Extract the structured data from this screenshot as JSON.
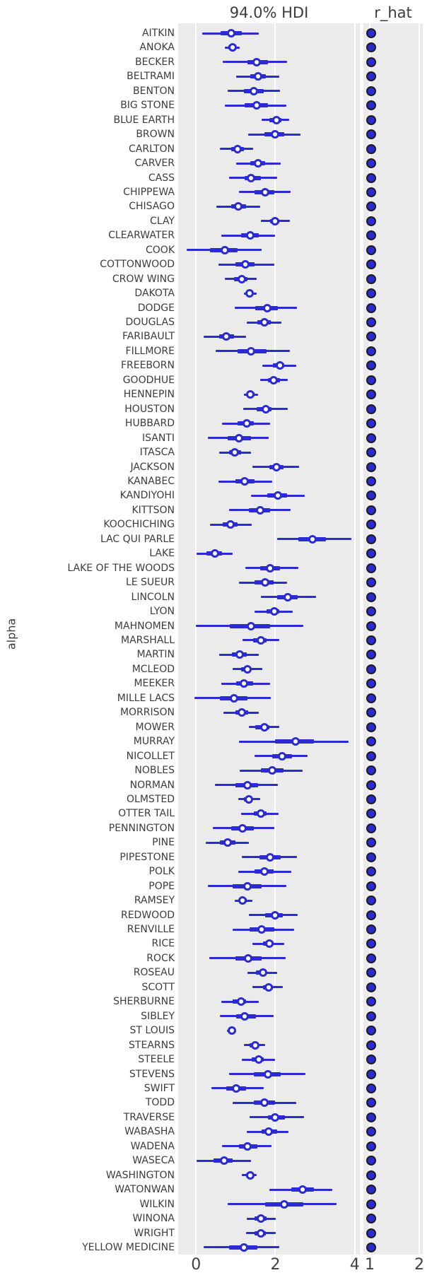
{
  "figure": {
    "colors": {
      "line": "#2b2bd5",
      "marker_fill": "#ffffff",
      "dot_fill": "#2b2bd5",
      "dot_edge": "#1c1c1c",
      "panel_bg": "#ebebeb",
      "grid": "#ffffff",
      "text": "#3c3c3c"
    }
  },
  "chart_data": {
    "type": "forest",
    "title": "94.0% HDI",
    "ylabel": "alpha",
    "hdi_prob": 0.94,
    "grid": true,
    "left_panel": {
      "title": "94.0% HDI",
      "xlim": [
        -0.45,
        4.13
      ],
      "ticks": [
        0,
        2,
        4
      ]
    },
    "right_panel": {
      "title": "r_hat",
      "xlim": [
        0.871,
        2.071
      ],
      "ticks": [
        1,
        2
      ]
    },
    "rows": [
      {
        "label": "AITKIN",
        "hdi": [
          0.15,
          1.58
        ],
        "q": [
          0.62,
          1.15
        ],
        "m": 0.88,
        "r_hat": 1.0
      },
      {
        "label": "ANOKA",
        "hdi": [
          0.73,
          1.1
        ],
        "q": [
          0.81,
          1.0
        ],
        "m": 0.92,
        "r_hat": 1.0
      },
      {
        "label": "BECKER",
        "hdi": [
          0.67,
          2.3
        ],
        "q": [
          1.29,
          1.82
        ],
        "m": 1.53,
        "r_hat": 1.0
      },
      {
        "label": "BELTRAMI",
        "hdi": [
          1.02,
          2.1
        ],
        "q": [
          1.36,
          1.76
        ],
        "m": 1.56,
        "r_hat": 1.0
      },
      {
        "label": "BENTON",
        "hdi": [
          0.8,
          2.12
        ],
        "q": [
          1.2,
          1.7
        ],
        "m": 1.45,
        "r_hat": 1.0
      },
      {
        "label": "BIG STONE",
        "hdi": [
          0.73,
          2.27
        ],
        "q": [
          1.23,
          1.82
        ],
        "m": 1.52,
        "r_hat": 1.0
      },
      {
        "label": "BLUE EARTH",
        "hdi": [
          1.66,
          2.35
        ],
        "q": [
          1.85,
          2.15
        ],
        "m": 2.02,
        "r_hat": 1.0
      },
      {
        "label": "BROWN",
        "hdi": [
          1.32,
          2.64
        ],
        "q": [
          1.73,
          2.23
        ],
        "m": 1.99,
        "r_hat": 1.0
      },
      {
        "label": "CARLTON",
        "hdi": [
          0.6,
          1.44
        ],
        "q": [
          0.89,
          1.2
        ],
        "m": 1.04,
        "r_hat": 1.0
      },
      {
        "label": "CARVER",
        "hdi": [
          1.01,
          2.13
        ],
        "q": [
          1.37,
          1.75
        ],
        "m": 1.56,
        "r_hat": 1.0
      },
      {
        "label": "CASS",
        "hdi": [
          0.83,
          2.05
        ],
        "q": [
          1.23,
          1.63
        ],
        "m": 1.39,
        "r_hat": 1.0
      },
      {
        "label": "CHIPPEWA",
        "hdi": [
          1.08,
          2.39
        ],
        "q": [
          1.48,
          1.97
        ],
        "m": 1.75,
        "r_hat": 1.0
      },
      {
        "label": "CHISAGO",
        "hdi": [
          0.52,
          1.61
        ],
        "q": [
          0.89,
          1.26
        ],
        "m": 1.07,
        "r_hat": 1.0
      },
      {
        "label": "CLAY",
        "hdi": [
          1.64,
          2.36
        ],
        "q": [
          1.87,
          2.1
        ],
        "m": 1.99,
        "r_hat": 1.0
      },
      {
        "label": "CLEARWATER",
        "hdi": [
          0.64,
          2.0
        ],
        "q": [
          1.13,
          1.59
        ],
        "m": 1.36,
        "r_hat": 1.0
      },
      {
        "label": "COOK",
        "hdi": [
          -0.24,
          1.65
        ],
        "q": [
          0.35,
          1.05
        ],
        "m": 0.73,
        "r_hat": 1.0
      },
      {
        "label": "COTTONWOOD",
        "hdi": [
          0.57,
          1.98
        ],
        "q": [
          0.99,
          1.48
        ],
        "m": 1.24,
        "r_hat": 1.0
      },
      {
        "label": "CROW WING",
        "hdi": [
          0.73,
          1.52
        ],
        "q": [
          0.96,
          1.3
        ],
        "m": 1.15,
        "r_hat": 1.0
      },
      {
        "label": "DAKOTA",
        "hdi": [
          1.21,
          1.52
        ],
        "q": [
          1.29,
          1.44
        ],
        "m": 1.35,
        "r_hat": 1.0
      },
      {
        "label": "DODGE",
        "hdi": [
          0.98,
          2.54
        ],
        "q": [
          1.49,
          2.07
        ],
        "m": 1.79,
        "r_hat": 1.0
      },
      {
        "label": "DOUGLAS",
        "hdi": [
          1.27,
          2.16
        ],
        "q": [
          1.55,
          1.89
        ],
        "m": 1.72,
        "r_hat": 1.0
      },
      {
        "label": "FARIBAULT",
        "hdi": [
          0.19,
          1.26
        ],
        "q": [
          0.58,
          0.95
        ],
        "m": 0.77,
        "r_hat": 1.0
      },
      {
        "label": "FILLMORE",
        "hdi": [
          0.5,
          2.36
        ],
        "q": [
          1.04,
          1.78
        ],
        "m": 1.39,
        "r_hat": 1.0
      },
      {
        "label": "FREEBORN",
        "hdi": [
          1.67,
          2.52
        ],
        "q": [
          1.93,
          2.23
        ],
        "m": 2.11,
        "r_hat": 1.0
      },
      {
        "label": "GOODHUE",
        "hdi": [
          1.61,
          2.32
        ],
        "q": [
          1.81,
          2.11
        ],
        "m": 1.95,
        "r_hat": 1.0
      },
      {
        "label": "HENNEPIN",
        "hdi": [
          1.2,
          1.57
        ],
        "q": [
          1.27,
          1.47
        ],
        "m": 1.37,
        "r_hat": 1.0
      },
      {
        "label": "HOUSTON",
        "hdi": [
          1.19,
          2.31
        ],
        "q": [
          1.52,
          1.9
        ],
        "m": 1.76,
        "r_hat": 1.0
      },
      {
        "label": "HUBBARD",
        "hdi": [
          0.65,
          1.87
        ],
        "q": [
          1.05,
          1.45
        ],
        "m": 1.27,
        "r_hat": 1.0
      },
      {
        "label": "ISANTI",
        "hdi": [
          0.29,
          1.83
        ],
        "q": [
          0.79,
          1.38
        ],
        "m": 1.08,
        "r_hat": 1.0
      },
      {
        "label": "ITASCA",
        "hdi": [
          0.58,
          1.39
        ],
        "q": [
          0.83,
          1.14
        ],
        "m": 0.98,
        "r_hat": 1.0
      },
      {
        "label": "JACKSON",
        "hdi": [
          1.42,
          2.59
        ],
        "q": [
          1.84,
          2.2
        ],
        "m": 2.03,
        "r_hat": 1.0
      },
      {
        "label": "KANABEC",
        "hdi": [
          0.57,
          1.92
        ],
        "q": [
          0.99,
          1.48
        ],
        "m": 1.23,
        "r_hat": 1.0
      },
      {
        "label": "KANDIYOHI",
        "hdi": [
          1.39,
          2.74
        ],
        "q": [
          1.79,
          2.3
        ],
        "m": 2.07,
        "r_hat": 1.0
      },
      {
        "label": "KITTSON",
        "hdi": [
          0.83,
          2.39
        ],
        "q": [
          1.33,
          1.87
        ],
        "m": 1.61,
        "r_hat": 1.0
      },
      {
        "label": "KOOCHICHING",
        "hdi": [
          0.35,
          1.41
        ],
        "q": [
          0.67,
          1.05
        ],
        "m": 0.86,
        "r_hat": 1.0
      },
      {
        "label": "LAC QUI PARLE",
        "hdi": [
          2.05,
          3.91
        ],
        "q": [
          2.58,
          3.27
        ],
        "m": 2.93,
        "r_hat": 1.0
      },
      {
        "label": "LAKE",
        "hdi": [
          0.02,
          0.92
        ],
        "q": [
          0.26,
          0.65
        ],
        "m": 0.48,
        "r_hat": 1.0
      },
      {
        "label": "LAKE OF THE WOODS",
        "hdi": [
          1.24,
          2.58
        ],
        "q": [
          1.62,
          2.11
        ],
        "m": 1.87,
        "r_hat": 1.0
      },
      {
        "label": "LE SUEUR",
        "hdi": [
          1.08,
          2.3
        ],
        "q": [
          1.48,
          1.96
        ],
        "m": 1.74,
        "r_hat": 1.0
      },
      {
        "label": "LINCOLN",
        "hdi": [
          1.63,
          3.02
        ],
        "q": [
          2.05,
          2.57
        ],
        "m": 2.32,
        "r_hat": 1.0
      },
      {
        "label": "LYON",
        "hdi": [
          1.48,
          2.44
        ],
        "q": [
          1.77,
          2.1
        ],
        "m": 1.98,
        "r_hat": 1.0
      },
      {
        "label": "MAHNOMEN",
        "hdi": [
          0.0,
          2.7
        ],
        "q": [
          0.85,
          1.87
        ],
        "m": 1.38,
        "r_hat": 1.0
      },
      {
        "label": "MARSHALL",
        "hdi": [
          1.17,
          2.09
        ],
        "q": [
          1.44,
          1.78
        ],
        "m": 1.63,
        "r_hat": 1.0
      },
      {
        "label": "MARTIN",
        "hdi": [
          0.58,
          1.58
        ],
        "q": [
          0.9,
          1.27
        ],
        "m": 1.1,
        "r_hat": 1.0
      },
      {
        "label": "MCLEOD",
        "hdi": [
          0.92,
          1.67
        ],
        "q": [
          1.14,
          1.39
        ],
        "m": 1.3,
        "r_hat": 1.0
      },
      {
        "label": "MEEKER",
        "hdi": [
          0.64,
          1.86
        ],
        "q": [
          1.01,
          1.44
        ],
        "m": 1.21,
        "r_hat": 1.0
      },
      {
        "label": "MILLE LACS",
        "hdi": [
          -0.04,
          1.89
        ],
        "q": [
          0.6,
          1.3
        ],
        "m": 0.96,
        "r_hat": 1.0
      },
      {
        "label": "MORRISON",
        "hdi": [
          0.69,
          1.58
        ],
        "q": [
          0.99,
          1.32
        ],
        "m": 1.16,
        "r_hat": 1.0
      },
      {
        "label": "MOWER",
        "hdi": [
          1.33,
          2.09
        ],
        "q": [
          1.5,
          1.85
        ],
        "m": 1.72,
        "r_hat": 1.0
      },
      {
        "label": "MURRAY",
        "hdi": [
          1.08,
          3.85
        ],
        "q": [
          1.99,
          2.98
        ],
        "m": 2.51,
        "r_hat": 1.0
      },
      {
        "label": "NICOLLET",
        "hdi": [
          1.47,
          2.82
        ],
        "q": [
          1.92,
          2.42
        ],
        "m": 2.17,
        "r_hat": 1.0
      },
      {
        "label": "NOBLES",
        "hdi": [
          1.1,
          2.68
        ],
        "q": [
          1.64,
          2.21
        ],
        "m": 1.92,
        "r_hat": 1.0
      },
      {
        "label": "NORMAN",
        "hdi": [
          0.48,
          2.07
        ],
        "q": [
          0.99,
          1.56
        ],
        "m": 1.29,
        "r_hat": 1.0
      },
      {
        "label": "OLMSTED",
        "hdi": [
          1.07,
          1.61
        ],
        "q": [
          1.2,
          1.43
        ],
        "m": 1.33,
        "r_hat": 1.0
      },
      {
        "label": "OTTER TAIL",
        "hdi": [
          1.13,
          2.08
        ],
        "q": [
          1.45,
          1.78
        ],
        "m": 1.64,
        "r_hat": 1.0
      },
      {
        "label": "PENNINGTON",
        "hdi": [
          0.42,
          1.98
        ],
        "q": [
          0.89,
          1.45
        ],
        "m": 1.18,
        "r_hat": 1.0
      },
      {
        "label": "PINE",
        "hdi": [
          0.24,
          1.33
        ],
        "q": [
          0.6,
          0.99
        ],
        "m": 0.79,
        "r_hat": 1.0
      },
      {
        "label": "PIPESTONE",
        "hdi": [
          1.16,
          2.55
        ],
        "q": [
          1.6,
          2.13
        ],
        "m": 1.86,
        "r_hat": 1.0
      },
      {
        "label": "POLK",
        "hdi": [
          1.07,
          2.4
        ],
        "q": [
          1.47,
          1.96
        ],
        "m": 1.72,
        "r_hat": 1.0
      },
      {
        "label": "POPE",
        "hdi": [
          0.3,
          2.28
        ],
        "q": [
          0.93,
          1.65
        ],
        "m": 1.3,
        "r_hat": 1.0
      },
      {
        "label": "RAMSEY",
        "hdi": [
          0.97,
          1.42
        ],
        "q": [
          1.08,
          1.27
        ],
        "m": 1.18,
        "r_hat": 1.0
      },
      {
        "label": "REDWOOD",
        "hdi": [
          1.33,
          2.57
        ],
        "q": [
          1.75,
          2.18
        ],
        "m": 1.99,
        "r_hat": 1.0
      },
      {
        "label": "RENVILLE",
        "hdi": [
          0.92,
          2.47
        ],
        "q": [
          1.35,
          1.98
        ],
        "m": 1.66,
        "r_hat": 1.0
      },
      {
        "label": "RICE",
        "hdi": [
          1.43,
          2.23
        ],
        "q": [
          1.68,
          1.95
        ],
        "m": 1.85,
        "r_hat": 1.0
      },
      {
        "label": "ROCK",
        "hdi": [
          0.33,
          2.26
        ],
        "q": [
          0.99,
          1.66
        ],
        "m": 1.32,
        "r_hat": 1.0
      },
      {
        "label": "ROSEAU",
        "hdi": [
          1.29,
          2.05
        ],
        "q": [
          1.51,
          1.78
        ],
        "m": 1.68,
        "r_hat": 1.0
      },
      {
        "label": "SCOTT",
        "hdi": [
          1.43,
          2.18
        ],
        "q": [
          1.68,
          1.93
        ],
        "m": 1.83,
        "r_hat": 1.0
      },
      {
        "label": "SHERBURNE",
        "hdi": [
          0.63,
          1.58
        ],
        "q": [
          0.92,
          1.26
        ],
        "m": 1.13,
        "r_hat": 1.0
      },
      {
        "label": "SIBLEY",
        "hdi": [
          0.6,
          1.95
        ],
        "q": [
          1.01,
          1.51
        ],
        "m": 1.23,
        "r_hat": 1.0
      },
      {
        "label": "ST LOUIS",
        "hdi": [
          0.78,
          1.02
        ],
        "q": [
          0.85,
          0.96
        ],
        "m": 0.9,
        "r_hat": 1.0
      },
      {
        "label": "STEARNS",
        "hdi": [
          1.21,
          1.75
        ],
        "q": [
          1.35,
          1.58
        ],
        "m": 1.5,
        "r_hat": 1.0
      },
      {
        "label": "STEELE",
        "hdi": [
          1.15,
          1.99
        ],
        "q": [
          1.4,
          1.7
        ],
        "m": 1.58,
        "r_hat": 1.0
      },
      {
        "label": "STEVENS",
        "hdi": [
          0.84,
          2.76
        ],
        "q": [
          1.45,
          2.14
        ],
        "m": 1.81,
        "r_hat": 1.0
      },
      {
        "label": "SWIFT",
        "hdi": [
          0.38,
          1.7
        ],
        "q": [
          0.77,
          1.26
        ],
        "m": 1.02,
        "r_hat": 1.0
      },
      {
        "label": "TODD",
        "hdi": [
          0.92,
          2.52
        ],
        "q": [
          1.45,
          2.0
        ],
        "m": 1.72,
        "r_hat": 1.0
      },
      {
        "label": "TRAVERSE",
        "hdi": [
          1.35,
          2.72
        ],
        "q": [
          1.81,
          2.24
        ],
        "m": 2.0,
        "r_hat": 1.0
      },
      {
        "label": "WABASHA",
        "hdi": [
          1.27,
          2.33
        ],
        "q": [
          1.65,
          2.05
        ],
        "m": 1.83,
        "r_hat": 1.0
      },
      {
        "label": "WADENA",
        "hdi": [
          0.66,
          1.9
        ],
        "q": [
          1.08,
          1.54
        ],
        "m": 1.3,
        "r_hat": 1.0
      },
      {
        "label": "WASECA",
        "hdi": [
          0.01,
          1.39
        ],
        "q": [
          0.44,
          0.92
        ],
        "m": 0.71,
        "r_hat": 1.0
      },
      {
        "label": "WASHINGTON",
        "hdi": [
          1.15,
          1.52
        ],
        "q": [
          1.26,
          1.43
        ],
        "m": 1.36,
        "r_hat": 1.0
      },
      {
        "label": "WATONWAN",
        "hdi": [
          1.85,
          3.43
        ],
        "q": [
          2.4,
          2.98
        ],
        "m": 2.68,
        "r_hat": 1.0
      },
      {
        "label": "WILKIN",
        "hdi": [
          0.79,
          3.54
        ],
        "q": [
          1.74,
          2.71
        ],
        "m": 2.23,
        "r_hat": 1.0
      },
      {
        "label": "WINONA",
        "hdi": [
          1.27,
          2.01
        ],
        "q": [
          1.48,
          1.77
        ],
        "m": 1.64,
        "r_hat": 1.0
      },
      {
        "label": "WRIGHT",
        "hdi": [
          1.26,
          2.01
        ],
        "q": [
          1.48,
          1.76
        ],
        "m": 1.63,
        "r_hat": 1.0
      },
      {
        "label": "YELLOW MEDICINE",
        "hdi": [
          0.2,
          2.09
        ],
        "q": [
          0.84,
          1.54
        ],
        "m": 1.2,
        "r_hat": 1.0
      }
    ]
  }
}
